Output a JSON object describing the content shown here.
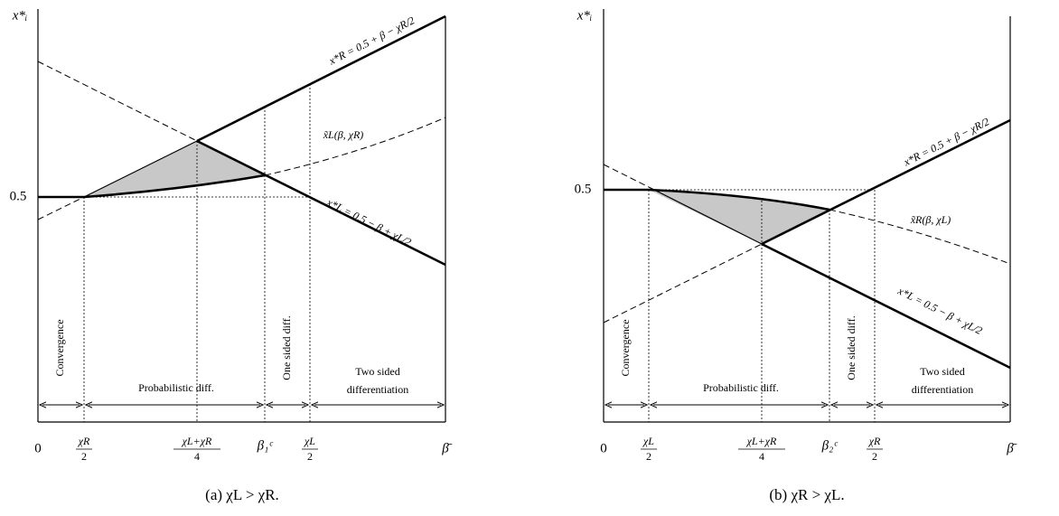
{
  "panels": [
    {
      "y_axis_label": "x*ᵢ",
      "y_tick": "0.5",
      "x_labels": {
        "origin": "0",
        "f1": {
          "num": "χR",
          "den": "2"
        },
        "f2": {
          "num": "χL+χR",
          "den": "4"
        },
        "beta_c": "β₁ᶜ",
        "f3": {
          "num": "χL",
          "den": "2"
        },
        "beta_bar": "β̄"
      },
      "curve_labels": {
        "upper": "x*R = 0.5 + β − χR/2",
        "middle": "x̃L(β, χR)",
        "lower": "x*L = 0.5 − β + χL/2"
      },
      "regions": {
        "convergence": "Convergence",
        "probabilistic": "Probabilistic diff.",
        "one_sided": "One sided diff.",
        "two_sided_1": "Two sided",
        "two_sided_2": "differentiation"
      },
      "caption": "(a) χL > χR."
    },
    {
      "y_axis_label": "x*ᵢ",
      "y_tick": "0.5",
      "x_labels": {
        "origin": "0",
        "f1": {
          "num": "χL",
          "den": "2"
        },
        "f2": {
          "num": "χL+χR",
          "den": "4"
        },
        "beta_c": "β₂ᶜ",
        "f3": {
          "num": "χR",
          "den": "2"
        },
        "beta_bar": "β̄"
      },
      "curve_labels": {
        "upper": "x*R = 0.5 + β − χR/2",
        "middle": "x̃R(β, χL)",
        "lower": "x*L = 0.5 − β + χL/2"
      },
      "regions": {
        "convergence": "Convergence",
        "probabilistic": "Probabilistic diff.",
        "one_sided": "One sided diff.",
        "two_sided_1": "Two sided",
        "two_sided_2": "differentiation"
      },
      "caption": "(b) χR > χL."
    }
  ]
}
